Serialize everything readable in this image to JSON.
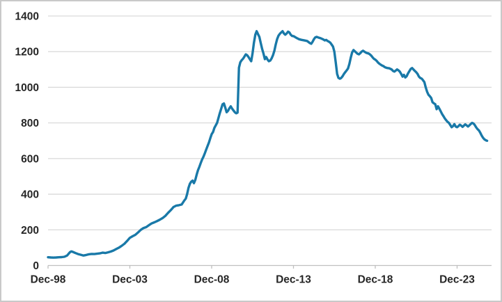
{
  "chart_data": {
    "type": "line",
    "title": "",
    "xlabel": "",
    "ylabel": "",
    "legend": "none",
    "grid": "horizontal",
    "x_axis": {
      "start": "Dec-98",
      "frequency": "monthly",
      "tick_labels": [
        "Dec-98",
        "Dec-03",
        "Dec-08",
        "Dec-13",
        "Dec-18",
        "Dec-23"
      ],
      "tick_month_positions": [
        0,
        60,
        120,
        180,
        240,
        300
      ],
      "last_month_position": 322
    },
    "y_axis": {
      "ticks": [
        0,
        200,
        400,
        600,
        800,
        1000,
        1200,
        1400
      ],
      "range": [
        0,
        1400
      ]
    },
    "series": [
      {
        "name": "value",
        "color": "#1979A8",
        "points": [
          [
            0,
            46
          ],
          [
            2,
            45
          ],
          [
            4,
            44
          ],
          [
            6,
            45
          ],
          [
            8,
            46
          ],
          [
            10,
            47
          ],
          [
            12,
            49
          ],
          [
            14,
            56
          ],
          [
            16,
            74
          ],
          [
            17,
            79
          ],
          [
            18,
            77
          ],
          [
            20,
            70
          ],
          [
            22,
            64
          ],
          [
            24,
            60
          ],
          [
            26,
            56
          ],
          [
            28,
            59
          ],
          [
            30,
            63
          ],
          [
            32,
            65
          ],
          [
            34,
            64
          ],
          [
            36,
            66
          ],
          [
            38,
            68
          ],
          [
            40,
            72
          ],
          [
            42,
            70
          ],
          [
            44,
            74
          ],
          [
            46,
            78
          ],
          [
            48,
            84
          ],
          [
            50,
            92
          ],
          [
            52,
            100
          ],
          [
            54,
            110
          ],
          [
            56,
            122
          ],
          [
            58,
            138
          ],
          [
            60,
            155
          ],
          [
            62,
            164
          ],
          [
            64,
            172
          ],
          [
            66,
            185
          ],
          [
            68,
            200
          ],
          [
            70,
            210
          ],
          [
            72,
            215
          ],
          [
            74,
            226
          ],
          [
            76,
            236
          ],
          [
            78,
            242
          ],
          [
            80,
            249
          ],
          [
            82,
            257
          ],
          [
            84,
            266
          ],
          [
            86,
            278
          ],
          [
            88,
            295
          ],
          [
            90,
            310
          ],
          [
            92,
            328
          ],
          [
            94,
            336
          ],
          [
            96,
            338
          ],
          [
            98,
            342
          ],
          [
            100,
            365
          ],
          [
            101,
            375
          ],
          [
            102,
            400
          ],
          [
            103,
            435
          ],
          [
            104,
            458
          ],
          [
            105,
            470
          ],
          [
            106,
            476
          ],
          [
            107,
            462
          ],
          [
            108,
            480
          ],
          [
            109,
            510
          ],
          [
            110,
            535
          ],
          [
            111,
            554
          ],
          [
            112,
            575
          ],
          [
            113,
            595
          ],
          [
            114,
            610
          ],
          [
            115,
            630
          ],
          [
            116,
            651
          ],
          [
            117,
            670
          ],
          [
            118,
            690
          ],
          [
            119,
            714
          ],
          [
            120,
            737
          ],
          [
            121,
            749
          ],
          [
            122,
            772
          ],
          [
            124,
            800
          ],
          [
            126,
            855
          ],
          [
            128,
            905
          ],
          [
            129,
            909
          ],
          [
            130,
            885
          ],
          [
            131,
            860
          ],
          [
            132,
            868
          ],
          [
            133,
            882
          ],
          [
            134,
            893
          ],
          [
            135,
            880
          ],
          [
            136,
            870
          ],
          [
            137,
            860
          ],
          [
            138,
            854
          ],
          [
            139,
            858
          ],
          [
            140,
            1110
          ],
          [
            141,
            1140
          ],
          [
            142,
            1152
          ],
          [
            143,
            1160
          ],
          [
            144,
            1172
          ],
          [
            145,
            1185
          ],
          [
            146,
            1180
          ],
          [
            147,
            1170
          ],
          [
            148,
            1158
          ],
          [
            149,
            1146
          ],
          [
            150,
            1190
          ],
          [
            151,
            1250
          ],
          [
            152,
            1295
          ],
          [
            153,
            1315
          ],
          [
            154,
            1298
          ],
          [
            155,
            1283
          ],
          [
            156,
            1248
          ],
          [
            157,
            1215
          ],
          [
            158,
            1190
          ],
          [
            159,
            1158
          ],
          [
            160,
            1170
          ],
          [
            161,
            1155
          ],
          [
            162,
            1146
          ],
          [
            163,
            1150
          ],
          [
            164,
            1163
          ],
          [
            165,
            1180
          ],
          [
            166,
            1205
          ],
          [
            167,
            1240
          ],
          [
            168,
            1270
          ],
          [
            169,
            1290
          ],
          [
            170,
            1300
          ],
          [
            171,
            1308
          ],
          [
            172,
            1315
          ],
          [
            173,
            1302
          ],
          [
            174,
            1295
          ],
          [
            175,
            1302
          ],
          [
            176,
            1312
          ],
          [
            177,
            1308
          ],
          [
            178,
            1295
          ],
          [
            179,
            1288
          ],
          [
            180,
            1287
          ],
          [
            182,
            1278
          ],
          [
            184,
            1270
          ],
          [
            186,
            1266
          ],
          [
            188,
            1263
          ],
          [
            190,
            1260
          ],
          [
            192,
            1248
          ],
          [
            193,
            1244
          ],
          [
            194,
            1255
          ],
          [
            195,
            1270
          ],
          [
            196,
            1280
          ],
          [
            197,
            1283
          ],
          [
            198,
            1280
          ],
          [
            200,
            1275
          ],
          [
            202,
            1268
          ],
          [
            203,
            1263
          ],
          [
            204,
            1266
          ],
          [
            205,
            1260
          ],
          [
            206,
            1256
          ],
          [
            207,
            1250
          ],
          [
            208,
            1240
          ],
          [
            209,
            1228
          ],
          [
            210,
            1200
          ],
          [
            211,
            1140
          ],
          [
            212,
            1075
          ],
          [
            213,
            1053
          ],
          [
            214,
            1048
          ],
          [
            215,
            1052
          ],
          [
            216,
            1062
          ],
          [
            217,
            1075
          ],
          [
            218,
            1085
          ],
          [
            219,
            1095
          ],
          [
            220,
            1105
          ],
          [
            221,
            1131
          ],
          [
            222,
            1165
          ],
          [
            223,
            1195
          ],
          [
            224,
            1209
          ],
          [
            225,
            1202
          ],
          [
            226,
            1195
          ],
          [
            227,
            1188
          ],
          [
            228,
            1185
          ],
          [
            229,
            1192
          ],
          [
            230,
            1200
          ],
          [
            231,
            1205
          ],
          [
            232,
            1200
          ],
          [
            233,
            1195
          ],
          [
            234,
            1192
          ],
          [
            235,
            1190
          ],
          [
            236,
            1185
          ],
          [
            237,
            1178
          ],
          [
            238,
            1168
          ],
          [
            239,
            1160
          ],
          [
            240,
            1155
          ],
          [
            241,
            1148
          ],
          [
            242,
            1139
          ],
          [
            243,
            1132
          ],
          [
            244,
            1127
          ],
          [
            245,
            1122
          ],
          [
            246,
            1119
          ],
          [
            247,
            1113
          ],
          [
            248,
            1110
          ],
          [
            249,
            1108
          ],
          [
            250,
            1107
          ],
          [
            251,
            1104
          ],
          [
            252,
            1100
          ],
          [
            253,
            1092
          ],
          [
            254,
            1088
          ],
          [
            255,
            1094
          ],
          [
            256,
            1100
          ],
          [
            257,
            1095
          ],
          [
            258,
            1088
          ],
          [
            259,
            1075
          ],
          [
            260,
            1060
          ],
          [
            261,
            1070
          ],
          [
            262,
            1055
          ],
          [
            263,
            1062
          ],
          [
            264,
            1078
          ],
          [
            265,
            1090
          ],
          [
            266,
            1103
          ],
          [
            267,
            1108
          ],
          [
            268,
            1100
          ],
          [
            269,
            1092
          ],
          [
            270,
            1085
          ],
          [
            271,
            1075
          ],
          [
            272,
            1060
          ],
          [
            273,
            1052
          ],
          [
            274,
            1049
          ],
          [
            275,
            1040
          ],
          [
            276,
            1029
          ],
          [
            277,
            1000
          ],
          [
            278,
            975
          ],
          [
            279,
            958
          ],
          [
            280,
            950
          ],
          [
            281,
            940
          ],
          [
            282,
            916
          ],
          [
            283,
            910
          ],
          [
            284,
            905
          ],
          [
            285,
            877
          ],
          [
            286,
            893
          ],
          [
            287,
            880
          ],
          [
            288,
            865
          ],
          [
            289,
            850
          ],
          [
            290,
            838
          ],
          [
            291,
            825
          ],
          [
            292,
            815
          ],
          [
            293,
            806
          ],
          [
            294,
            800
          ],
          [
            295,
            788
          ],
          [
            296,
            776
          ],
          [
            297,
            782
          ],
          [
            298,
            793
          ],
          [
            299,
            780
          ],
          [
            300,
            776
          ],
          [
            301,
            782
          ],
          [
            302,
            790
          ],
          [
            303,
            785
          ],
          [
            304,
            778
          ],
          [
            305,
            785
          ],
          [
            306,
            792
          ],
          [
            307,
            786
          ],
          [
            308,
            780
          ],
          [
            309,
            786
          ],
          [
            310,
            794
          ],
          [
            311,
            800
          ],
          [
            312,
            797
          ],
          [
            313,
            788
          ],
          [
            314,
            775
          ],
          [
            315,
            765
          ],
          [
            316,
            758
          ],
          [
            317,
            745
          ],
          [
            318,
            730
          ],
          [
            319,
            717
          ],
          [
            320,
            708
          ],
          [
            321,
            703
          ],
          [
            322,
            700
          ]
        ]
      }
    ]
  },
  "style": {
    "line_color": "#1979A8",
    "gridline_color": "#d9d9d9",
    "axis_line_color": "#bfbfbf",
    "tick_mark_color": "#bfbfbf",
    "label_color": "#262626",
    "background_color": "#ffffff",
    "border_color": "#c9c9c9"
  }
}
